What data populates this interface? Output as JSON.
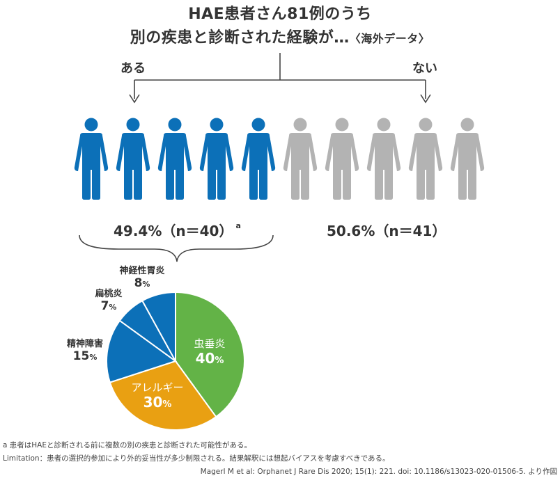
{
  "title": {
    "line1": "HAE患者さん81例のうち",
    "line2": "別の疾患と診断された経験が…",
    "line2_suffix": "〈海外データ〉"
  },
  "branches": {
    "yes": "ある",
    "no": "ない"
  },
  "groups": [
    {
      "label": "49.4%（n＝40）",
      "footnote_mark": "a",
      "color": "#0c70b8",
      "people": 5
    },
    {
      "label": "50.6%（n＝41）",
      "footnote_mark": "",
      "color": "#b3b3b3",
      "people": 5
    }
  ],
  "chart_data": {
    "type": "pie",
    "title": "",
    "slices": [
      {
        "label": "虫垂炎",
        "value": 40,
        "display": "40",
        "color": "#63b347"
      },
      {
        "label": "アレルギー",
        "value": 30,
        "display": "30",
        "color": "#e9a012"
      },
      {
        "label": "精神障害",
        "value": 15,
        "display": "15",
        "color": "#0c70b8"
      },
      {
        "label": "扁桃炎",
        "value": 7,
        "display": "7",
        "color": "#0c70b8"
      },
      {
        "label": "神経性胃炎",
        "value": 8,
        "display": "8",
        "color": "#0c70b8"
      }
    ],
    "unit": "%"
  },
  "footnotes": {
    "a": "a 患者はHAEと診断される前に複数の別の疾患と診断された可能性がある。",
    "limitation": "Limitation：患者の選択的参加により外的妥当性が多少制限される。結果解釈には想起バイアスを考慮すべきである。"
  },
  "citation": "Magerl M et al: Orphanet J Rare Dis 2020; 15(1): 221. doi: 10.1186/s13023-020-01506-5. より作図"
}
